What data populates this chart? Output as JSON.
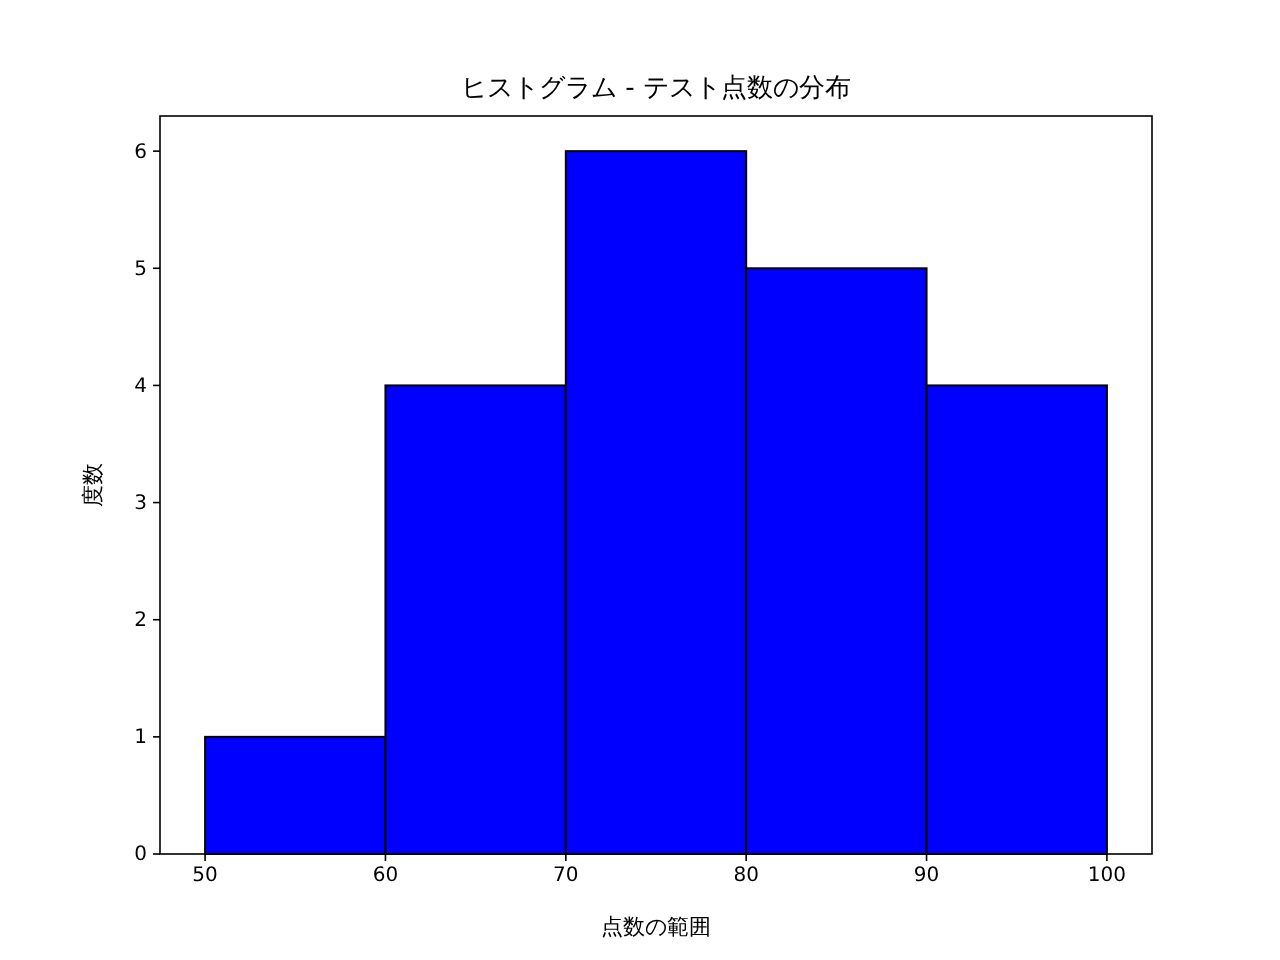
{
  "chart_data": {
    "type": "histogram",
    "title": "ヒストグラム - テスト点数の分布",
    "xlabel": "点数の範囲",
    "ylabel": "度数",
    "bins": [
      50,
      60,
      70,
      80,
      90,
      100
    ],
    "values": [
      1,
      4,
      6,
      5,
      4
    ],
    "color": "#0000ff",
    "xlim": [
      47.5,
      102.5
    ],
    "ylim": [
      0,
      6.3
    ],
    "xticks": [
      50,
      60,
      70,
      80,
      90,
      100
    ],
    "yticks": [
      0,
      1,
      2,
      3,
      4,
      5,
      6
    ]
  }
}
